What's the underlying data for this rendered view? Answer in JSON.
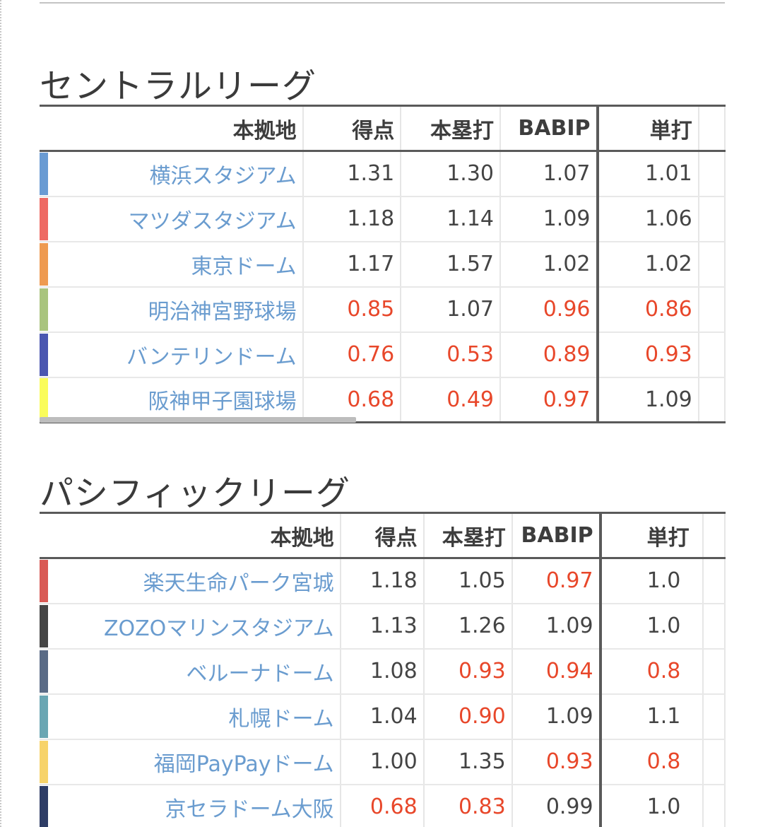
{
  "central": {
    "title": "セントラルリーグ",
    "headers": [
      "本拠地",
      "得点",
      "本塁打",
      "BABIP",
      "単打"
    ],
    "rows": [
      {
        "color": "#6a9bd3",
        "stadium": "横浜スタジアム",
        "values": [
          "1.31",
          "1.30",
          "1.07",
          "1.01"
        ],
        "low": [
          false,
          false,
          false,
          false
        ]
      },
      {
        "color": "#ee6a64",
        "stadium": "マツダスタジアム",
        "values": [
          "1.18",
          "1.14",
          "1.09",
          "1.06"
        ],
        "low": [
          false,
          false,
          false,
          false
        ]
      },
      {
        "color": "#ee9a50",
        "stadium": "東京ドーム",
        "values": [
          "1.17",
          "1.57",
          "1.02",
          "1.02"
        ],
        "low": [
          false,
          false,
          false,
          false
        ]
      },
      {
        "color": "#a9c47e",
        "stadium": "明治神宮野球場",
        "values": [
          "0.85",
          "1.07",
          "0.96",
          "0.86"
        ],
        "low": [
          true,
          false,
          true,
          true
        ]
      },
      {
        "color": "#4a56b0",
        "stadium": "バンテリンドーム",
        "values": [
          "0.76",
          "0.53",
          "0.89",
          "0.93"
        ],
        "low": [
          true,
          true,
          true,
          true
        ]
      },
      {
        "color": "#fafc5a",
        "stadium": "阪神甲子園球場",
        "values": [
          "0.68",
          "0.49",
          "0.97",
          "1.09"
        ],
        "low": [
          true,
          true,
          true,
          false
        ]
      }
    ]
  },
  "pacific": {
    "title": "パシフィックリーグ",
    "headers": [
      "本拠地",
      "得点",
      "本塁打",
      "BABIP",
      "単打"
    ],
    "rows": [
      {
        "color": "#d95a55",
        "stadium": "楽天生命パーク宮城",
        "values": [
          "1.18",
          "1.05",
          "0.97",
          "1.0"
        ],
        "low": [
          false,
          false,
          true,
          false
        ]
      },
      {
        "color": "#454545",
        "stadium": "ZOZOマリンスタジアム",
        "values": [
          "1.13",
          "1.26",
          "1.09",
          "1.0"
        ],
        "low": [
          false,
          false,
          false,
          false
        ]
      },
      {
        "color": "#5a6b86",
        "stadium": "ベルーナドーム",
        "values": [
          "1.08",
          "0.93",
          "0.94",
          "0.8"
        ],
        "low": [
          false,
          true,
          true,
          true
        ]
      },
      {
        "color": "#6aa6b3",
        "stadium": "札幌ドーム",
        "values": [
          "1.04",
          "0.90",
          "1.09",
          "1.1"
        ],
        "low": [
          false,
          true,
          false,
          false
        ]
      },
      {
        "color": "#f7d36a",
        "stadium": "福岡PayPayドーム",
        "values": [
          "1.00",
          "1.35",
          "0.93",
          "0.8"
        ],
        "low": [
          false,
          false,
          true,
          true
        ]
      },
      {
        "color": "#2e3d66",
        "stadium": "京セラドーム大阪",
        "values": [
          "0.68",
          "0.83",
          "0.99",
          "1.0"
        ],
        "low": [
          true,
          true,
          false,
          false
        ]
      }
    ]
  }
}
